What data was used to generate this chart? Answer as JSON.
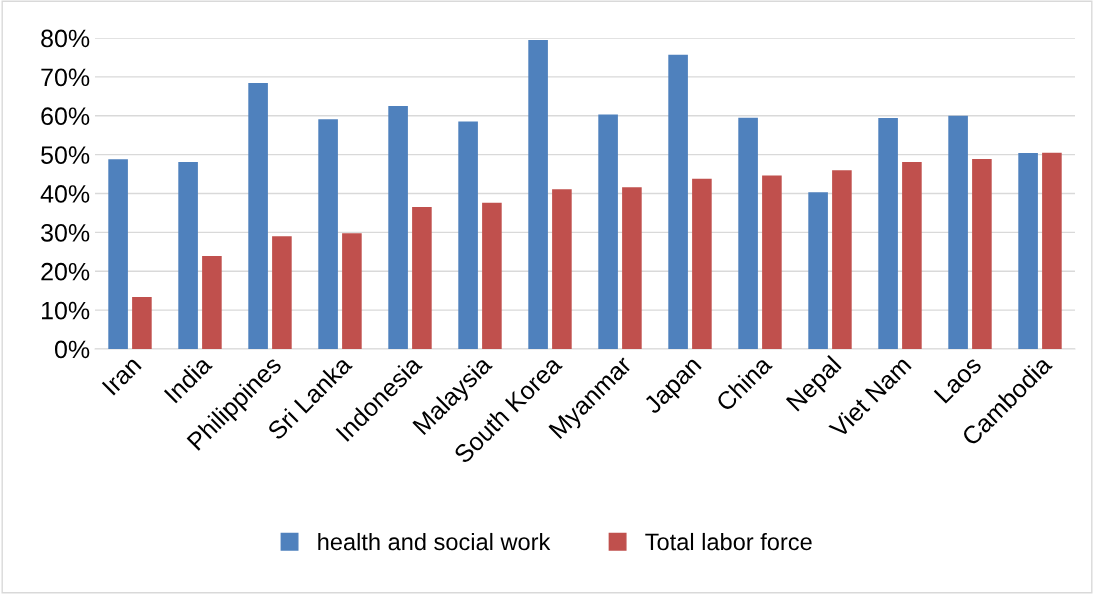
{
  "chart_data": {
    "type": "bar",
    "categories": [
      "Iran",
      "India",
      "Philippines",
      "Sri Lanka",
      "Indonesia",
      "Malaysia",
      "South Korea",
      "Myanmar",
      "Japan",
      "China",
      "Nepal",
      "Viet Nam",
      "Laos",
      "Cambodia"
    ],
    "series": [
      {
        "name": "health and social work",
        "color": "#4f81bd",
        "values": [
          48.8,
          48.1,
          68.4,
          59.1,
          62.5,
          58.5,
          79.5,
          60.3,
          75.7,
          59.5,
          40.3,
          59.4,
          60.0,
          50.4
        ]
      },
      {
        "name": "Total labor force",
        "color": "#c0504d",
        "values": [
          13.4,
          23.9,
          29.0,
          29.8,
          36.5,
          37.6,
          41.1,
          41.6,
          43.8,
          44.6,
          46.0,
          48.1,
          48.9,
          50.5
        ]
      }
    ],
    "ylim": [
      0,
      80
    ],
    "yticks": [
      {
        "value": 0,
        "label": "0%"
      },
      {
        "value": 10,
        "label": "10%"
      },
      {
        "value": 20,
        "label": "20%"
      },
      {
        "value": 30,
        "label": "30%"
      },
      {
        "value": 40,
        "label": "40%"
      },
      {
        "value": 50,
        "label": "50%"
      },
      {
        "value": 60,
        "label": "60%"
      },
      {
        "value": 70,
        "label": "70%"
      },
      {
        "value": 80,
        "label": "80%"
      }
    ],
    "grid": "y",
    "legend": "bottom"
  }
}
